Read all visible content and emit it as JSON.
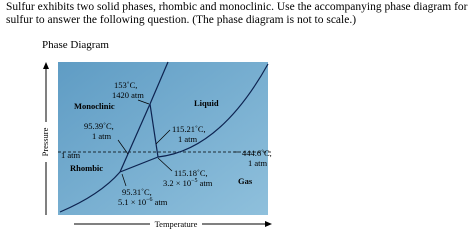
{
  "question": {
    "lines": [
      "Sulfur exhibits two solid phases, rhombic and monoclinic. Use the accompanying phase diagram for",
      "sulfur to answer the following question. (The phase diagram is not to scale.)"
    ]
  },
  "diagram": {
    "title": "Phase Diagram",
    "labels": {
      "triple_top": [
        "153˚C,",
        "1420 atm"
      ],
      "monoclinic": "Monoclinic",
      "liquid": "Liquid",
      "triple_left": [
        "95.39˚C,",
        "1 atm"
      ],
      "triple_mid": [
        "115.21˚C,",
        "1 atm"
      ],
      "one_atm": "1 atm",
      "rhombic": "Rhombic",
      "boiling": [
        "444.6˚C,",
        "1 atm"
      ],
      "gas": "Gas",
      "triple_low": {
        "line1": "115.18˚C,",
        "base": "3.2 × 10",
        "exp": "−5",
        "unit": "atm"
      },
      "triple_bottom": {
        "line1": "95.31˚C,",
        "base": "5.1 × 10",
        "exp": "−6",
        "unit": "atm"
      }
    },
    "y_axis": "Pressure",
    "x_axis": "Temperature"
  }
}
